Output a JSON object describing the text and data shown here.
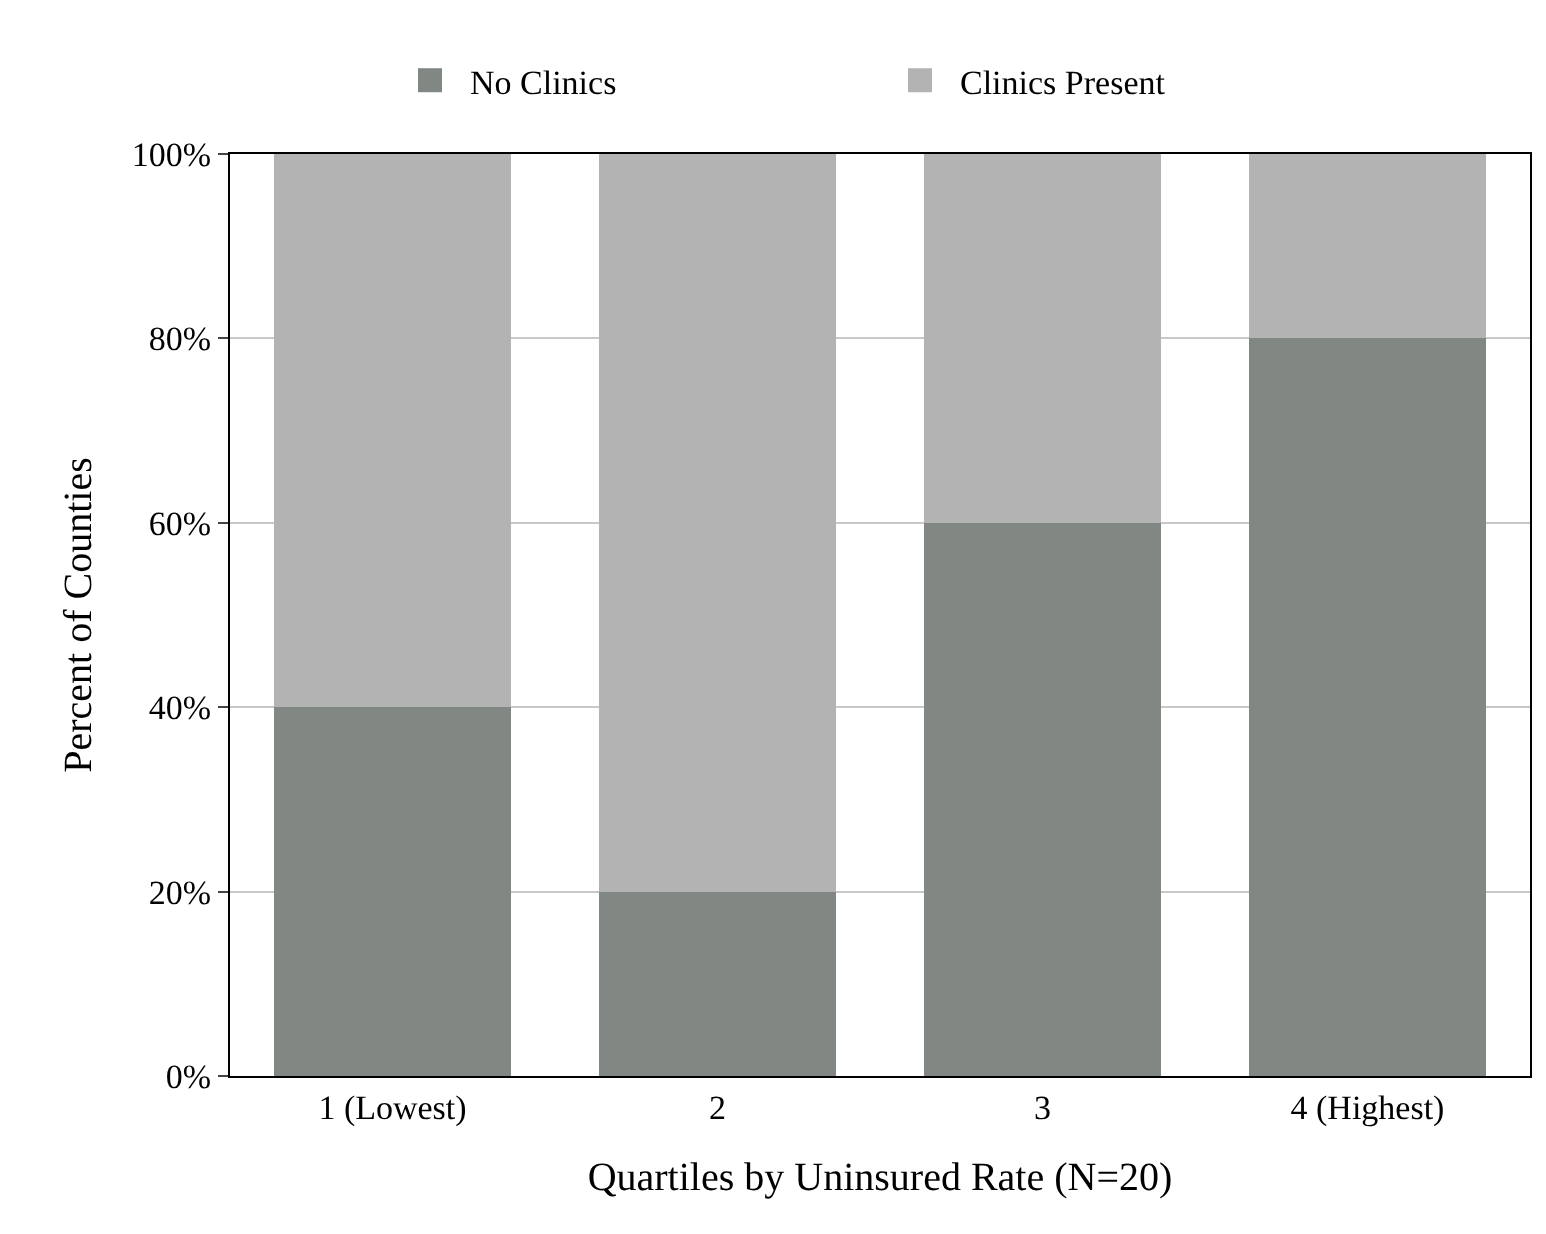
{
  "chart_data": {
    "type": "bar",
    "stacked": true,
    "categories": [
      "1 (Lowest)",
      "2",
      "3",
      "4 (Highest)"
    ],
    "series": [
      {
        "name": "No Clinics",
        "color": "#818884",
        "values": [
          40,
          20,
          60,
          80
        ]
      },
      {
        "name": "Clinics Present",
        "color": "#b3b3b3",
        "values": [
          60,
          80,
          40,
          20
        ]
      }
    ],
    "xlabel": "Quartiles by Uninsured Rate (N=20)",
    "ylabel": "Percent of Counties",
    "ylim": [
      0,
      100
    ],
    "yticks": [
      {
        "value": 0,
        "label": "0%"
      },
      {
        "value": 20,
        "label": "20%"
      },
      {
        "value": 40,
        "label": "40%"
      },
      {
        "value": 60,
        "label": "60%"
      },
      {
        "value": 80,
        "label": "80%"
      },
      {
        "value": 100,
        "label": "100%"
      }
    ],
    "grid": "y",
    "legend": "top"
  }
}
